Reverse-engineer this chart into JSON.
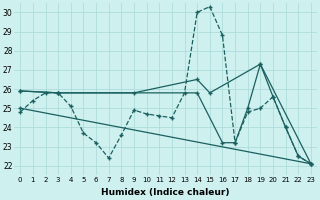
{
  "xlabel": "Humidex (Indice chaleur)",
  "xlim": [
    -0.5,
    23.5
  ],
  "ylim": [
    21.5,
    30.5
  ],
  "yticks": [
    22,
    23,
    24,
    25,
    26,
    27,
    28,
    29,
    30
  ],
  "xticks": [
    0,
    1,
    2,
    3,
    4,
    5,
    6,
    7,
    8,
    9,
    10,
    11,
    12,
    13,
    14,
    15,
    16,
    17,
    18,
    19,
    20,
    21,
    22,
    23
  ],
  "bg_color": "#cef0ee",
  "grid_color": "#a8d8d8",
  "line_color": "#1a6060",
  "series": [
    {
      "x": [
        0,
        1,
        2,
        3,
        4,
        5,
        6,
        7,
        8,
        9,
        10,
        11,
        12,
        13,
        14,
        15,
        16,
        17,
        18,
        19,
        20,
        21,
        22,
        23
      ],
      "y": [
        24.8,
        25.4,
        25.8,
        25.8,
        25.1,
        23.7,
        23.2,
        22.4,
        23.6,
        24.9,
        24.7,
        24.6,
        24.5,
        25.8,
        30.0,
        30.3,
        28.8,
        23.2,
        24.8,
        25.0,
        25.6,
        24.0,
        22.5,
        22.1
      ],
      "linestyle": "--",
      "marker": "+"
    },
    {
      "x": [
        0,
        23
      ],
      "y": [
        25.0,
        22.1
      ],
      "linestyle": "-",
      "marker": "+"
    },
    {
      "x": [
        0,
        3,
        14,
        16,
        17,
        18,
        19,
        20,
        21,
        22,
        23
      ],
      "y": [
        25.9,
        25.8,
        25.8,
        23.2,
        23.2,
        25.0,
        27.3,
        25.6,
        24.0,
        22.5,
        22.1
      ],
      "linestyle": "-",
      "marker": "+"
    },
    {
      "comment": "solid line from 0,26 going to 3,25.8 then to 14,26.5 to 16,23.2 to 19,27.3 to 20,25.6 22,22",
      "x": [
        0,
        3,
        9,
        14,
        15,
        19,
        23
      ],
      "y": [
        25.9,
        25.8,
        25.8,
        26.5,
        25.8,
        27.3,
        22.1
      ],
      "linestyle": "-",
      "marker": "+"
    }
  ]
}
